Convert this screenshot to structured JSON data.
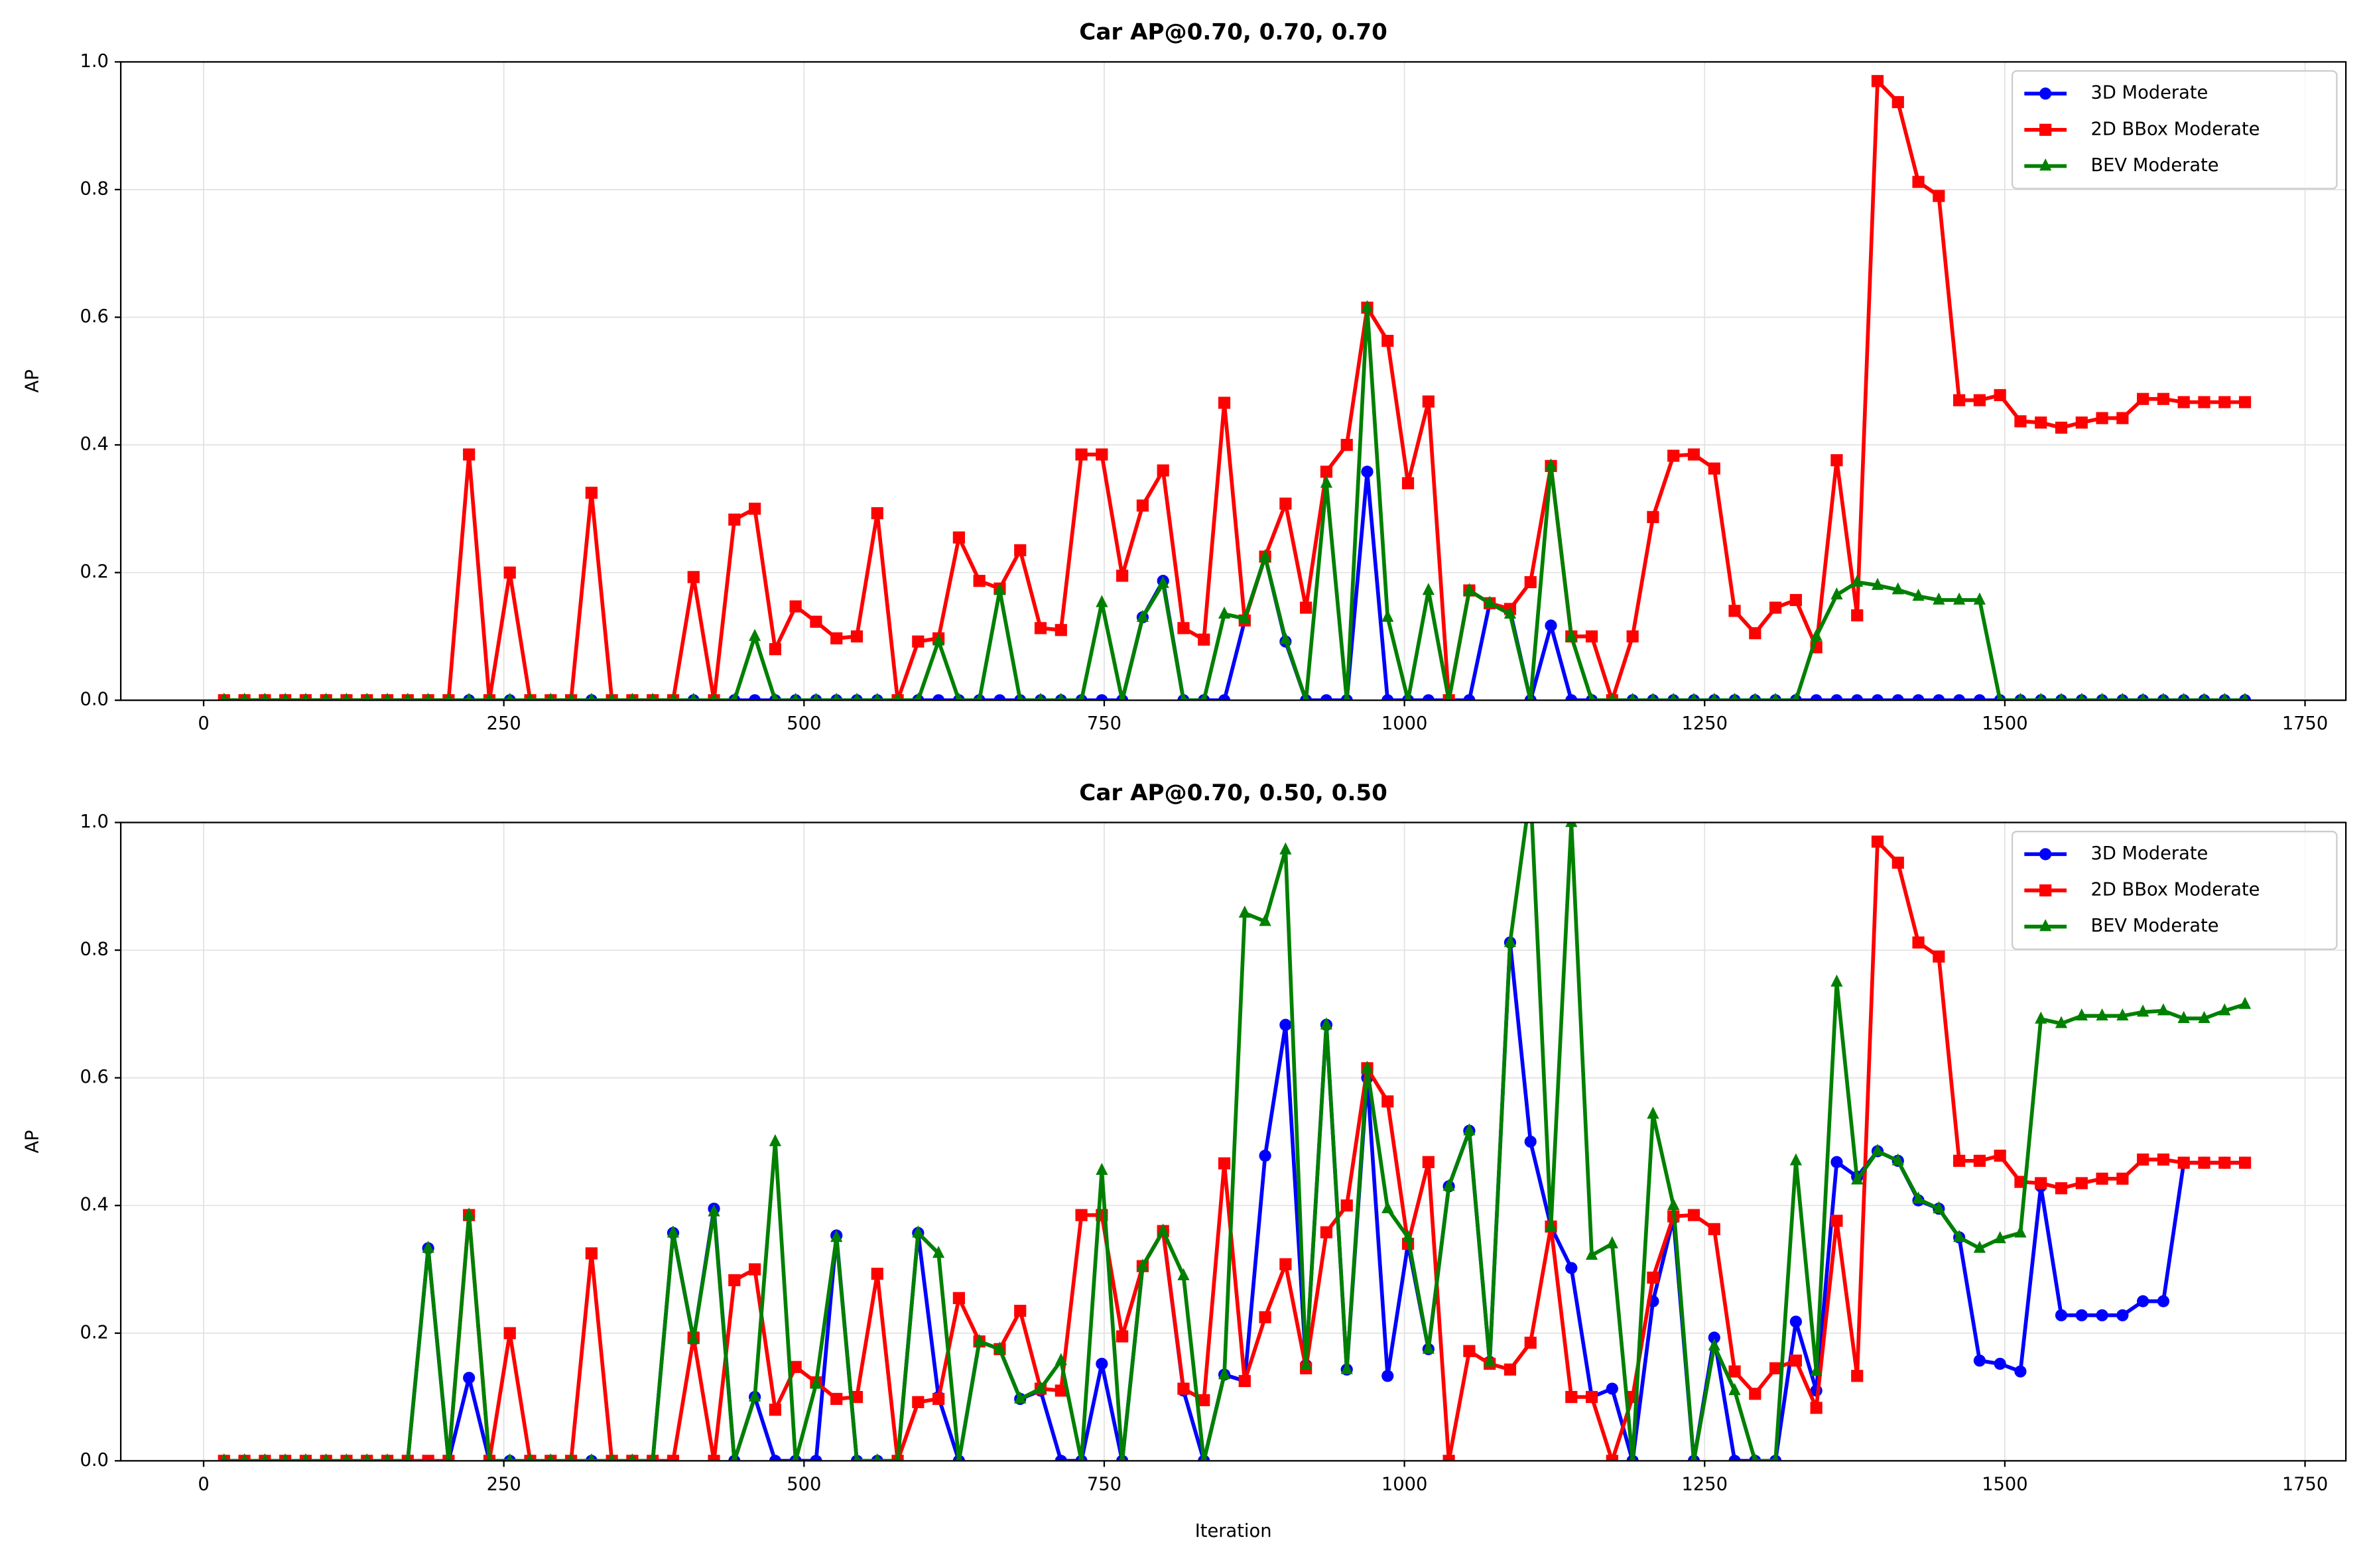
{
  "chart_data": [
    {
      "type": "line",
      "title": "Car AP@0.70, 0.70, 0.70",
      "ylabel": "AP",
      "x": [
        17,
        34,
        51,
        68,
        85,
        102,
        119,
        136,
        153,
        170,
        187,
        204,
        221,
        238,
        255,
        272,
        289,
        306,
        323,
        340,
        357,
        374,
        391,
        408,
        425,
        442,
        459,
        476,
        493,
        510,
        527,
        544,
        561,
        578,
        595,
        612,
        629,
        646,
        663,
        680,
        697,
        714,
        731,
        748,
        765,
        782,
        799,
        816,
        833,
        850,
        867,
        884,
        901,
        918,
        935,
        952,
        969,
        986,
        1003,
        1020,
        1037,
        1054,
        1071,
        1088,
        1105,
        1122,
        1139,
        1156,
        1173,
        1190,
        1207,
        1224,
        1241,
        1258,
        1275,
        1292,
        1309,
        1326,
        1343,
        1360,
        1377,
        1394,
        1411,
        1428,
        1445,
        1462,
        1479,
        1496,
        1513,
        1530,
        1547,
        1564,
        1581,
        1598,
        1615,
        1632,
        1649,
        1666,
        1683,
        1700
      ],
      "series": [
        {
          "name": "3D Moderate",
          "color": "#0000ff",
          "marker": "circle",
          "values": [
            0,
            0,
            0,
            0,
            0,
            0,
            0,
            0,
            0,
            0,
            0,
            0,
            0,
            0,
            0,
            0,
            0,
            0,
            0,
            0,
            0,
            0,
            0,
            0,
            0,
            0,
            0,
            0,
            0,
            0,
            0,
            0,
            0,
            0,
            0,
            0,
            0,
            0,
            0,
            0,
            0,
            0,
            0,
            0,
            0,
            0.13,
            0.187,
            0,
            0,
            0,
            0.125,
            0.225,
            0.092,
            0,
            0,
            0,
            0.358,
            0,
            0,
            0,
            0,
            0,
            0.152,
            0.14,
            0,
            0.117,
            0,
            0,
            0,
            0,
            0,
            0,
            0,
            0,
            0,
            0,
            0,
            0,
            0,
            0,
            0,
            0,
            0,
            0,
            0,
            0,
            0,
            0,
            0,
            0,
            0,
            0,
            0,
            0,
            0,
            0,
            0,
            0,
            0,
            0
          ]
        },
        {
          "name": "2D BBox Moderate",
          "color": "#ff0000",
          "marker": "square",
          "values": [
            0,
            0,
            0,
            0,
            0,
            0,
            0,
            0,
            0,
            0,
            0,
            0,
            0.385,
            0,
            0.2,
            0,
            0,
            0,
            0.325,
            0,
            0,
            0,
            0,
            0.193,
            0,
            0.283,
            0.3,
            0.08,
            0.147,
            0.123,
            0.097,
            0.1,
            0.293,
            0,
            0.092,
            0.097,
            0.255,
            0.187,
            0.175,
            0.235,
            0.113,
            0.11,
            0.385,
            0.385,
            0.195,
            0.305,
            0.36,
            0.113,
            0.095,
            0.466,
            0.125,
            0.225,
            0.308,
            0.145,
            0.358,
            0.4,
            0.615,
            0.563,
            0.34,
            0.468,
            0,
            0.172,
            0.152,
            0.143,
            0.185,
            0.367,
            0.1,
            0.1,
            0,
            0.1,
            0.287,
            0.383,
            0.385,
            0.363,
            0.14,
            0.105,
            0.145,
            0.157,
            0.083,
            0.376,
            0.133,
            0.97,
            0.937,
            0.812,
            0.79,
            0.47,
            0.47,
            0.478,
            0.437,
            0.435,
            0.427,
            0.435,
            0.442,
            0.442,
            0.472,
            0.472,
            0.467,
            0.467,
            0.467,
            0.467
          ]
        },
        {
          "name": "BEV Moderate",
          "color": "#008000",
          "marker": "triangle",
          "values": [
            0,
            0,
            0,
            0,
            0,
            0,
            0,
            0,
            0,
            0,
            0,
            0,
            0,
            0,
            0,
            0,
            0,
            0,
            0,
            0,
            0,
            0,
            0,
            0,
            0,
            0,
            0.1,
            0,
            0,
            0,
            0,
            0,
            0,
            0,
            0,
            0.093,
            0,
            0,
            0.172,
            0,
            0,
            0,
            0,
            0.153,
            0,
            0.13,
            0.183,
            0,
            0,
            0.135,
            0.128,
            0.225,
            0.095,
            0,
            0.34,
            0,
            0.615,
            0.13,
            0,
            0.172,
            0,
            0.172,
            0.152,
            0.135,
            0,
            0.367,
            0.1,
            0,
            0,
            0,
            0,
            0,
            0,
            0,
            0,
            0,
            0,
            0,
            0.1,
            0.165,
            0.185,
            0.18,
            0.173,
            0.163,
            0.157,
            0.157,
            0.157,
            0,
            0,
            0,
            0,
            0,
            0,
            0,
            0,
            0,
            0,
            0,
            0,
            0
          ]
        }
      ],
      "xlim": [
        -69,
        1784
      ],
      "xticks": [
        0,
        250,
        500,
        750,
        1000,
        1250,
        1500,
        1750
      ],
      "ylim": [
        0,
        1
      ],
      "yticks": [
        {
          "value": 0,
          "label": "0.0"
        },
        {
          "value": 0.2,
          "label": "0.2"
        },
        {
          "value": 0.4,
          "label": "0.4"
        },
        {
          "value": 0.6,
          "label": "0.6"
        },
        {
          "value": 0.8,
          "label": "0.8"
        },
        {
          "value": 1,
          "label": "1.0"
        }
      ],
      "grid": true,
      "legend": "upper right"
    },
    {
      "type": "line",
      "title": "Car AP@0.70, 0.50, 0.50",
      "xlabel": "Iteration",
      "ylabel": "AP",
      "x": [
        17,
        34,
        51,
        68,
        85,
        102,
        119,
        136,
        153,
        170,
        187,
        204,
        221,
        238,
        255,
        272,
        289,
        306,
        323,
        340,
        357,
        374,
        391,
        408,
        425,
        442,
        459,
        476,
        493,
        510,
        527,
        544,
        561,
        578,
        595,
        612,
        629,
        646,
        663,
        680,
        697,
        714,
        731,
        748,
        765,
        782,
        799,
        816,
        833,
        850,
        867,
        884,
        901,
        918,
        935,
        952,
        969,
        986,
        1003,
        1020,
        1037,
        1054,
        1071,
        1088,
        1105,
        1122,
        1139,
        1156,
        1173,
        1190,
        1207,
        1224,
        1241,
        1258,
        1275,
        1292,
        1309,
        1326,
        1343,
        1360,
        1377,
        1394,
        1411,
        1428,
        1445,
        1462,
        1479,
        1496,
        1513,
        1530,
        1547,
        1564,
        1581,
        1598,
        1615,
        1632,
        1649,
        1666,
        1683,
        1700
      ],
      "series": [
        {
          "name": "3D Moderate",
          "color": "#0000ff",
          "marker": "circle",
          "values": [
            0,
            0,
            0,
            0,
            0,
            0,
            0,
            0,
            0,
            0,
            0.333,
            0,
            0.13,
            0,
            0,
            0,
            0,
            0,
            0,
            0,
            0,
            0,
            0.357,
            0.19,
            0.395,
            0,
            0.1,
            0,
            0,
            0,
            0.353,
            0,
            0,
            0,
            0.357,
            0.1,
            0,
            0.187,
            0.175,
            0.097,
            0.11,
            0,
            0,
            0.152,
            0,
            0.305,
            0.36,
            0.11,
            0,
            0.135,
            0.125,
            0.478,
            0.683,
            0.15,
            0.683,
            0.143,
            0.6,
            0.133,
            0.34,
            0.175,
            0.43,
            0.517,
            0.155,
            0.812,
            0.5,
            0.367,
            0.302,
            0.1,
            0.113,
            0,
            0.25,
            0.38,
            0,
            0.193,
            0,
            0,
            0,
            0.218,
            0.11,
            0.468,
            0.445,
            0.485,
            0.47,
            0.408,
            0.395,
            0.35,
            0.157,
            0.152,
            0.14,
            0.43,
            0.228,
            0.228,
            0.228,
            0.228,
            0.25,
            0.25,
            0.467,
            0.467,
            0.467,
            0.467
          ]
        },
        {
          "name": "2D BBox Moderate",
          "color": "#ff0000",
          "marker": "square",
          "values": [
            0,
            0,
            0,
            0,
            0,
            0,
            0,
            0,
            0,
            0,
            0,
            0,
            0.385,
            0,
            0.2,
            0,
            0,
            0,
            0.325,
            0,
            0,
            0,
            0,
            0.193,
            0,
            0.283,
            0.3,
            0.08,
            0.147,
            0.123,
            0.097,
            0.1,
            0.293,
            0,
            0.092,
            0.097,
            0.255,
            0.187,
            0.175,
            0.235,
            0.113,
            0.11,
            0.385,
            0.385,
            0.195,
            0.305,
            0.36,
            0.113,
            0.095,
            0.466,
            0.125,
            0.225,
            0.308,
            0.145,
            0.358,
            0.4,
            0.615,
            0.563,
            0.34,
            0.468,
            0,
            0.172,
            0.152,
            0.143,
            0.185,
            0.367,
            0.1,
            0.1,
            0,
            0.1,
            0.287,
            0.383,
            0.385,
            0.363,
            0.14,
            0.105,
            0.145,
            0.157,
            0.083,
            0.376,
            0.133,
            0.97,
            0.937,
            0.812,
            0.79,
            0.47,
            0.47,
            0.478,
            0.437,
            0.435,
            0.427,
            0.435,
            0.442,
            0.442,
            0.472,
            0.472,
            0.467,
            0.467,
            0.467,
            0.467
          ]
        },
        {
          "name": "BEV Moderate",
          "color": "#008000",
          "marker": "triangle",
          "values": [
            0,
            0,
            0,
            0,
            0,
            0,
            0,
            0,
            0,
            0,
            0.333,
            0,
            0.385,
            0,
            0,
            0,
            0,
            0,
            0,
            0,
            0,
            0,
            0.357,
            0.19,
            0.39,
            0,
            0.1,
            0.5,
            0,
            0.12,
            0.35,
            0,
            0,
            0,
            0.357,
            0.325,
            0,
            0.187,
            0.175,
            0.097,
            0.113,
            0.157,
            0,
            0.455,
            0,
            0.305,
            0.36,
            0.29,
            0,
            0.135,
            0.858,
            0.845,
            0.957,
            0.15,
            0.683,
            0.143,
            0.615,
            0.395,
            0.35,
            0.175,
            0.43,
            0.517,
            0.155,
            0.812,
            1.05,
            0.367,
            1.0,
            0.322,
            0.34,
            0,
            0.543,
            0.4,
            0,
            0.18,
            0.11,
            0,
            0,
            0.47,
            0.14,
            0.75,
            0.44,
            0.485,
            0.47,
            0.41,
            0.395,
            0.35,
            0.333,
            0.348,
            0.357,
            0.692,
            0.685,
            0.697,
            0.697,
            0.697,
            0.703,
            0.705,
            0.693,
            0.693,
            0.705,
            0.715
          ]
        }
      ],
      "xlim": [
        -69,
        1784
      ],
      "xticks": [
        0,
        250,
        500,
        750,
        1000,
        1250,
        1500,
        1750
      ],
      "ylim": [
        0,
        1
      ],
      "yticks": [
        {
          "value": 0,
          "label": "0.0"
        },
        {
          "value": 0.2,
          "label": "0.2"
        },
        {
          "value": 0.4,
          "label": "0.4"
        },
        {
          "value": 0.6,
          "label": "0.6"
        },
        {
          "value": 0.8,
          "label": "0.8"
        },
        {
          "value": 1,
          "label": "1.0"
        }
      ],
      "grid": true,
      "legend": "upper right"
    }
  ]
}
